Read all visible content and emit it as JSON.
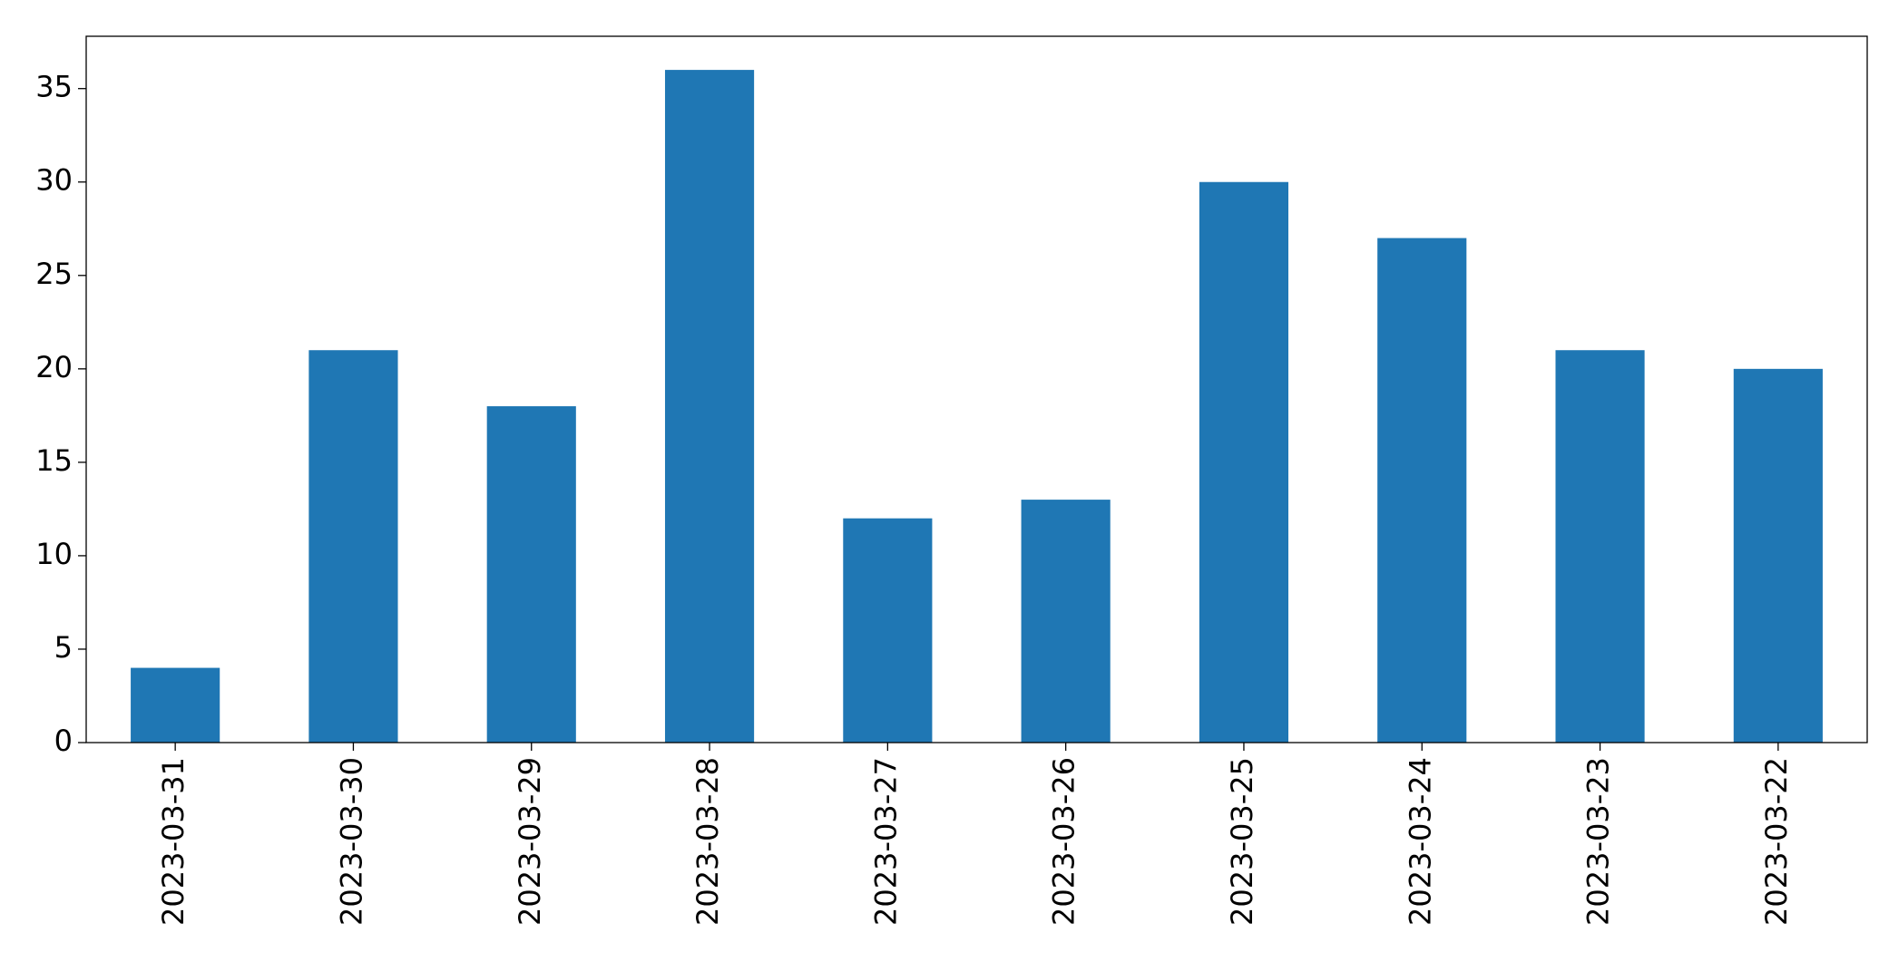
{
  "chart_data": {
    "type": "bar",
    "categories": [
      "2023-03-31",
      "2023-03-30",
      "2023-03-29",
      "2023-03-28",
      "2023-03-27",
      "2023-03-26",
      "2023-03-25",
      "2023-03-24",
      "2023-03-23",
      "2023-03-22"
    ],
    "values": [
      4,
      21,
      18,
      36,
      12,
      13,
      30,
      27,
      21,
      20
    ],
    "color": "#1f77b4",
    "ylim": [
      0,
      37.8
    ],
    "yticks": [
      0,
      5,
      10,
      15,
      20,
      25,
      30,
      35
    ],
    "grid": false
  }
}
